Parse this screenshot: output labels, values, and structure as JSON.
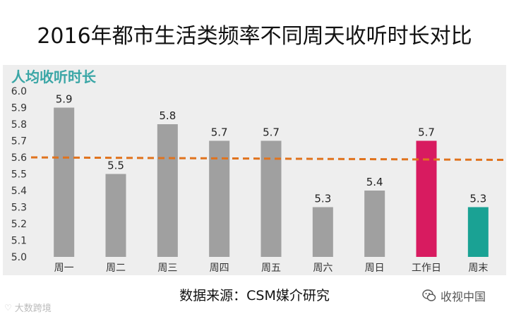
{
  "page_title": "2016年都市生活类频率不同周天收听时长对比",
  "source_note": "数据来源：CSM媒介研究",
  "wechat_label": "收视中国",
  "watermark_text": "大数跨境",
  "chart_data": {
    "type": "bar",
    "title": "人均收听时长",
    "categories": [
      "周一",
      "周二",
      "周三",
      "周四",
      "周五",
      "周六",
      "周日",
      "工作日",
      "周末"
    ],
    "values": [
      5.9,
      5.5,
      5.8,
      5.7,
      5.7,
      5.3,
      5.4,
      5.7,
      5.3
    ],
    "value_labels": [
      "5.9",
      "5.5",
      "5.8",
      "5.7",
      "5.7",
      "5.3",
      "5.4",
      "5.7",
      "5.3"
    ],
    "bar_colors": [
      "#a0a0a0",
      "#a0a0a0",
      "#a0a0a0",
      "#a0a0a0",
      "#a0a0a0",
      "#a0a0a0",
      "#a0a0a0",
      "#d81b60",
      "#1aa294"
    ],
    "ylim": [
      5.0,
      6.0
    ],
    "yticks": [
      5.0,
      5.1,
      5.2,
      5.3,
      5.4,
      5.5,
      5.6,
      5.7,
      5.8,
      5.9,
      6.0
    ],
    "ytick_labels": [
      "5.0",
      "5.1",
      "5.2",
      "5.3",
      "5.4",
      "5.5",
      "5.6",
      "5.7",
      "5.8",
      "5.9",
      "6.0"
    ],
    "average_line": {
      "start": 5.6,
      "end": 5.585,
      "color": "#e0731e"
    },
    "title_color": "#3aa6a6",
    "grid": false,
    "legend": "none"
  }
}
